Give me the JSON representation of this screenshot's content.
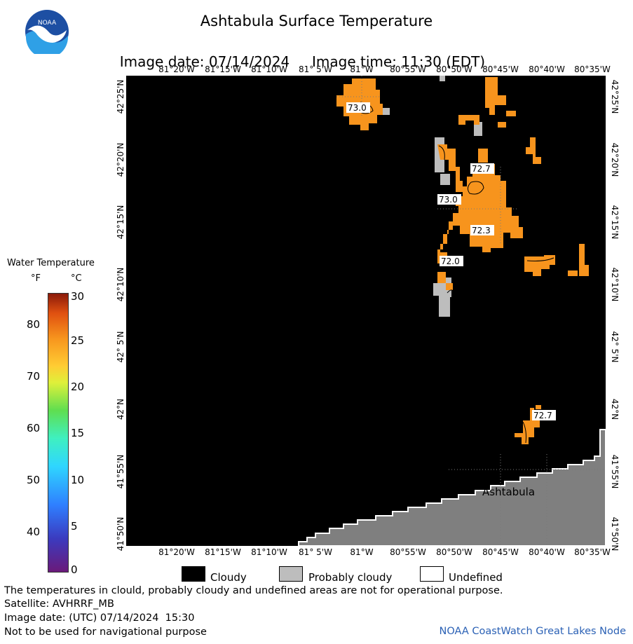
{
  "title": "Ashtabula Surface Temperature",
  "image_date_label": "Image date: 07/14/2024",
  "image_time_label": "Image time: 11:30 (EDT)",
  "logo": {
    "text": "NOAA",
    "icon": "noaa-logo-icon"
  },
  "lon_labels": [
    "81°20'W",
    "81°15'W",
    "81°10'W",
    "81° 5'W",
    "81°W",
    "80°55'W",
    "80°50'W",
    "80°45'W",
    "80°40'W",
    "80°35'W"
  ],
  "lat_labels": [
    "42°25'N",
    "42°20'N",
    "42°15'N",
    "42°10'N",
    "42° 5'N",
    "42°N",
    "41°55'N",
    "41°50'N"
  ],
  "temp_labels": [
    "73.0",
    "72.7",
    "73.0",
    "72.3",
    "72.0",
    "72.7"
  ],
  "place": "Ashtabula",
  "legend": {
    "title": "Water Temperature",
    "unit_f": "°F",
    "unit_c": "°C",
    "ticks_f": [
      "80",
      "70",
      "60",
      "50",
      "40"
    ],
    "ticks_c": [
      "30",
      "25",
      "20",
      "15",
      "10",
      "5",
      "0"
    ]
  },
  "key": {
    "cloudy": "Cloudy",
    "probably_cloudy": "Probably cloudy",
    "undefined": "Undefined"
  },
  "footer": {
    "line1": "The temperatures in clould, probably cloudy and undefined areas are not for operational purpose.",
    "line2": "Satellite: AVHRRF_MB",
    "line3": "Image date: (UTC) 07/14/2024  15:30",
    "line4": "Not to be used for navigational purpose",
    "credit": "NOAA CoastWatch Great Lakes Node"
  },
  "colors": {
    "water_warm": "#f7941d",
    "cloud": "#000000",
    "probably_cloudy": "#bdbdbd",
    "land": "#7f7f7f",
    "credit": "#2b61b5"
  }
}
